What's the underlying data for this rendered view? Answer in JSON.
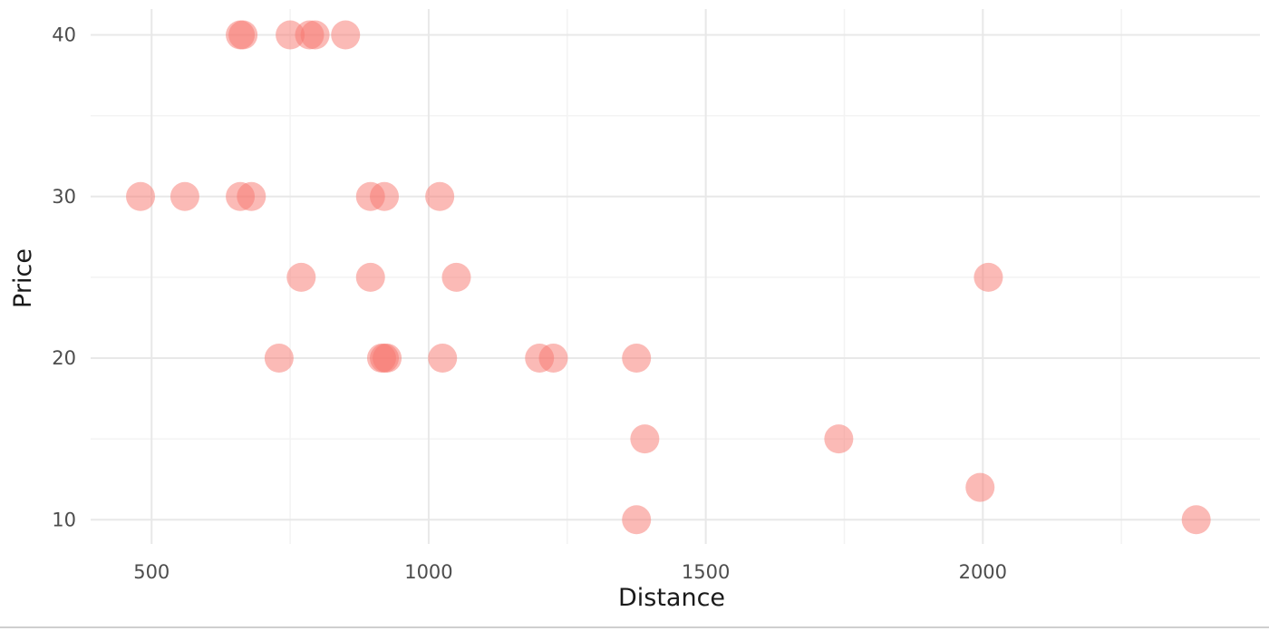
{
  "chart_data": {
    "type": "scatter",
    "title": "",
    "xlabel": "Distance",
    "ylabel": "Price",
    "xlim": [
      390,
      2500
    ],
    "ylim": [
      8.5,
      41.6
    ],
    "x_ticks": [
      500,
      1000,
      1500,
      2000
    ],
    "y_ticks": [
      10,
      20,
      30,
      40
    ],
    "x_minor_ticks": [
      750,
      1250,
      1750,
      2250
    ],
    "y_minor_ticks": [
      15,
      25,
      35
    ],
    "grid": true,
    "point_color": "#f8766d",
    "point_alpha": 0.5,
    "points": [
      {
        "x": 660,
        "y": 40
      },
      {
        "x": 665,
        "y": 40
      },
      {
        "x": 750,
        "y": 40
      },
      {
        "x": 785,
        "y": 40
      },
      {
        "x": 795,
        "y": 40
      },
      {
        "x": 850,
        "y": 40
      },
      {
        "x": 480,
        "y": 30
      },
      {
        "x": 560,
        "y": 30
      },
      {
        "x": 660,
        "y": 30
      },
      {
        "x": 680,
        "y": 30
      },
      {
        "x": 895,
        "y": 30
      },
      {
        "x": 920,
        "y": 30
      },
      {
        "x": 1020,
        "y": 30
      },
      {
        "x": 770,
        "y": 25
      },
      {
        "x": 895,
        "y": 25
      },
      {
        "x": 1050,
        "y": 25
      },
      {
        "x": 2010,
        "y": 25
      },
      {
        "x": 730,
        "y": 20
      },
      {
        "x": 915,
        "y": 20
      },
      {
        "x": 920,
        "y": 20
      },
      {
        "x": 925,
        "y": 20
      },
      {
        "x": 1025,
        "y": 20
      },
      {
        "x": 1200,
        "y": 20
      },
      {
        "x": 1225,
        "y": 20
      },
      {
        "x": 1375,
        "y": 20
      },
      {
        "x": 1390,
        "y": 15
      },
      {
        "x": 1740,
        "y": 15
      },
      {
        "x": 1995,
        "y": 12
      },
      {
        "x": 1375,
        "y": 10
      },
      {
        "x": 2385,
        "y": 10
      }
    ]
  }
}
